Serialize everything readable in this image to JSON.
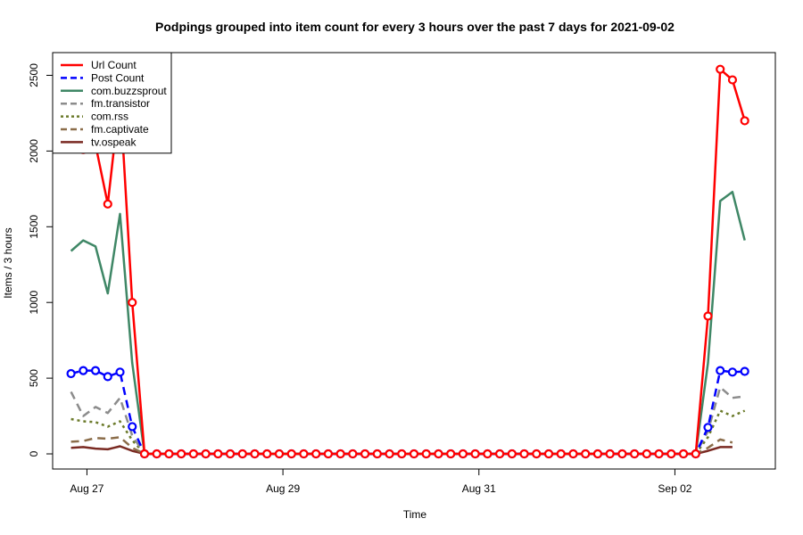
{
  "chart_data": {
    "type": "line",
    "title": "Podpings grouped into item count for every 3 hours  over the past 7 days for 2021-09-02",
    "xlabel": "Time",
    "ylabel": "Items / 3 hours",
    "ylim": [
      -100,
      2650
    ],
    "y_ticks": [
      0,
      500,
      1000,
      1500,
      2000,
      2500
    ],
    "x_ticks": [
      {
        "index": 1.3,
        "label": "Aug 27"
      },
      {
        "index": 17.3,
        "label": "Aug 29"
      },
      {
        "index": 33.3,
        "label": "Aug 31"
      },
      {
        "index": 49.3,
        "label": "Sep 02"
      }
    ],
    "xlim": [
      -1.5,
      57.5
    ],
    "legend_position": "top-left",
    "series": [
      {
        "name": "Url Count",
        "color": "#ff0000",
        "dash": "solid",
        "markers": true,
        "values": [
          2100,
          2010,
          2040,
          1650,
          2370,
          1000,
          0,
          0,
          0,
          0,
          0,
          0,
          0,
          0,
          0,
          0,
          0,
          0,
          0,
          0,
          0,
          0,
          0,
          0,
          0,
          0,
          0,
          0,
          0,
          0,
          0,
          0,
          0,
          0,
          0,
          0,
          0,
          0,
          0,
          0,
          0,
          0,
          0,
          0,
          0,
          0,
          0,
          0,
          0,
          0,
          0,
          0,
          910,
          2540,
          2470,
          2200
        ]
      },
      {
        "name": "Post Count",
        "color": "#0000ff",
        "dash": "dashed",
        "markers": true,
        "values": [
          530,
          550,
          550,
          510,
          540,
          180,
          0,
          0,
          0,
          0,
          0,
          0,
          0,
          0,
          0,
          0,
          0,
          0,
          0,
          0,
          0,
          0,
          0,
          0,
          0,
          0,
          0,
          0,
          0,
          0,
          0,
          0,
          0,
          0,
          0,
          0,
          0,
          0,
          0,
          0,
          0,
          0,
          0,
          0,
          0,
          0,
          0,
          0,
          0,
          0,
          0,
          0,
          175,
          550,
          540,
          545
        ]
      },
      {
        "name": "com.buzzsprout",
        "color": "#3f8766",
        "dash": "solid",
        "markers": false,
        "values": [
          1340,
          1410,
          1370,
          1060,
          1585,
          600,
          0,
          0,
          0,
          0,
          0,
          0,
          0,
          0,
          0,
          0,
          0,
          0,
          0,
          0,
          0,
          0,
          0,
          0,
          0,
          0,
          0,
          0,
          0,
          0,
          0,
          0,
          0,
          0,
          0,
          0,
          0,
          0,
          0,
          0,
          0,
          0,
          0,
          0,
          0,
          0,
          0,
          0,
          0,
          0,
          0,
          0,
          600,
          1670,
          1730,
          1410
        ]
      },
      {
        "name": "fm.transistor",
        "color": "#8c8c8c",
        "dash": "dashed",
        "markers": false,
        "values": [
          410,
          250,
          310,
          270,
          370,
          120,
          0,
          0,
          0,
          0,
          0,
          0,
          0,
          0,
          0,
          0,
          0,
          0,
          0,
          0,
          0,
          0,
          0,
          0,
          0,
          0,
          0,
          0,
          0,
          0,
          0,
          0,
          0,
          0,
          0,
          0,
          0,
          0,
          0,
          0,
          0,
          0,
          0,
          0,
          0,
          0,
          0,
          0,
          0,
          0,
          0,
          0,
          150,
          440,
          370,
          380
        ]
      },
      {
        "name": "com.rss",
        "color": "#6b7a2a",
        "dash": "dotted",
        "markers": false,
        "values": [
          230,
          215,
          210,
          180,
          215,
          90,
          0,
          0,
          0,
          0,
          0,
          0,
          0,
          0,
          0,
          0,
          0,
          0,
          0,
          0,
          0,
          0,
          0,
          0,
          0,
          0,
          0,
          0,
          0,
          0,
          0,
          0,
          0,
          0,
          0,
          0,
          0,
          0,
          0,
          0,
          0,
          0,
          0,
          0,
          0,
          0,
          0,
          0,
          0,
          0,
          0,
          0,
          110,
          285,
          250,
          285
        ]
      },
      {
        "name": "fm.captivate",
        "color": "#8b6d4a",
        "dash": "dashed",
        "markers": false,
        "values": [
          80,
          85,
          105,
          100,
          110,
          40,
          0,
          0,
          0,
          0,
          0,
          0,
          0,
          0,
          0,
          0,
          0,
          0,
          0,
          0,
          0,
          0,
          0,
          0,
          0,
          0,
          0,
          0,
          0,
          0,
          0,
          0,
          0,
          0,
          0,
          0,
          0,
          0,
          0,
          0,
          0,
          0,
          0,
          0,
          0,
          0,
          0,
          0,
          0,
          0,
          0,
          0,
          40,
          95,
          75,
          null
        ]
      },
      {
        "name": "tv.ospeak",
        "color": "#7a2a22",
        "dash": "solid",
        "markers": false,
        "values": [
          40,
          45,
          35,
          30,
          50,
          20,
          0,
          0,
          0,
          0,
          0,
          0,
          0,
          0,
          0,
          0,
          0,
          0,
          0,
          0,
          0,
          0,
          0,
          0,
          0,
          0,
          0,
          0,
          0,
          0,
          0,
          0,
          0,
          0,
          0,
          0,
          0,
          0,
          0,
          0,
          0,
          0,
          0,
          0,
          0,
          0,
          0,
          0,
          0,
          0,
          0,
          0,
          20,
          45,
          45,
          null
        ]
      }
    ]
  }
}
